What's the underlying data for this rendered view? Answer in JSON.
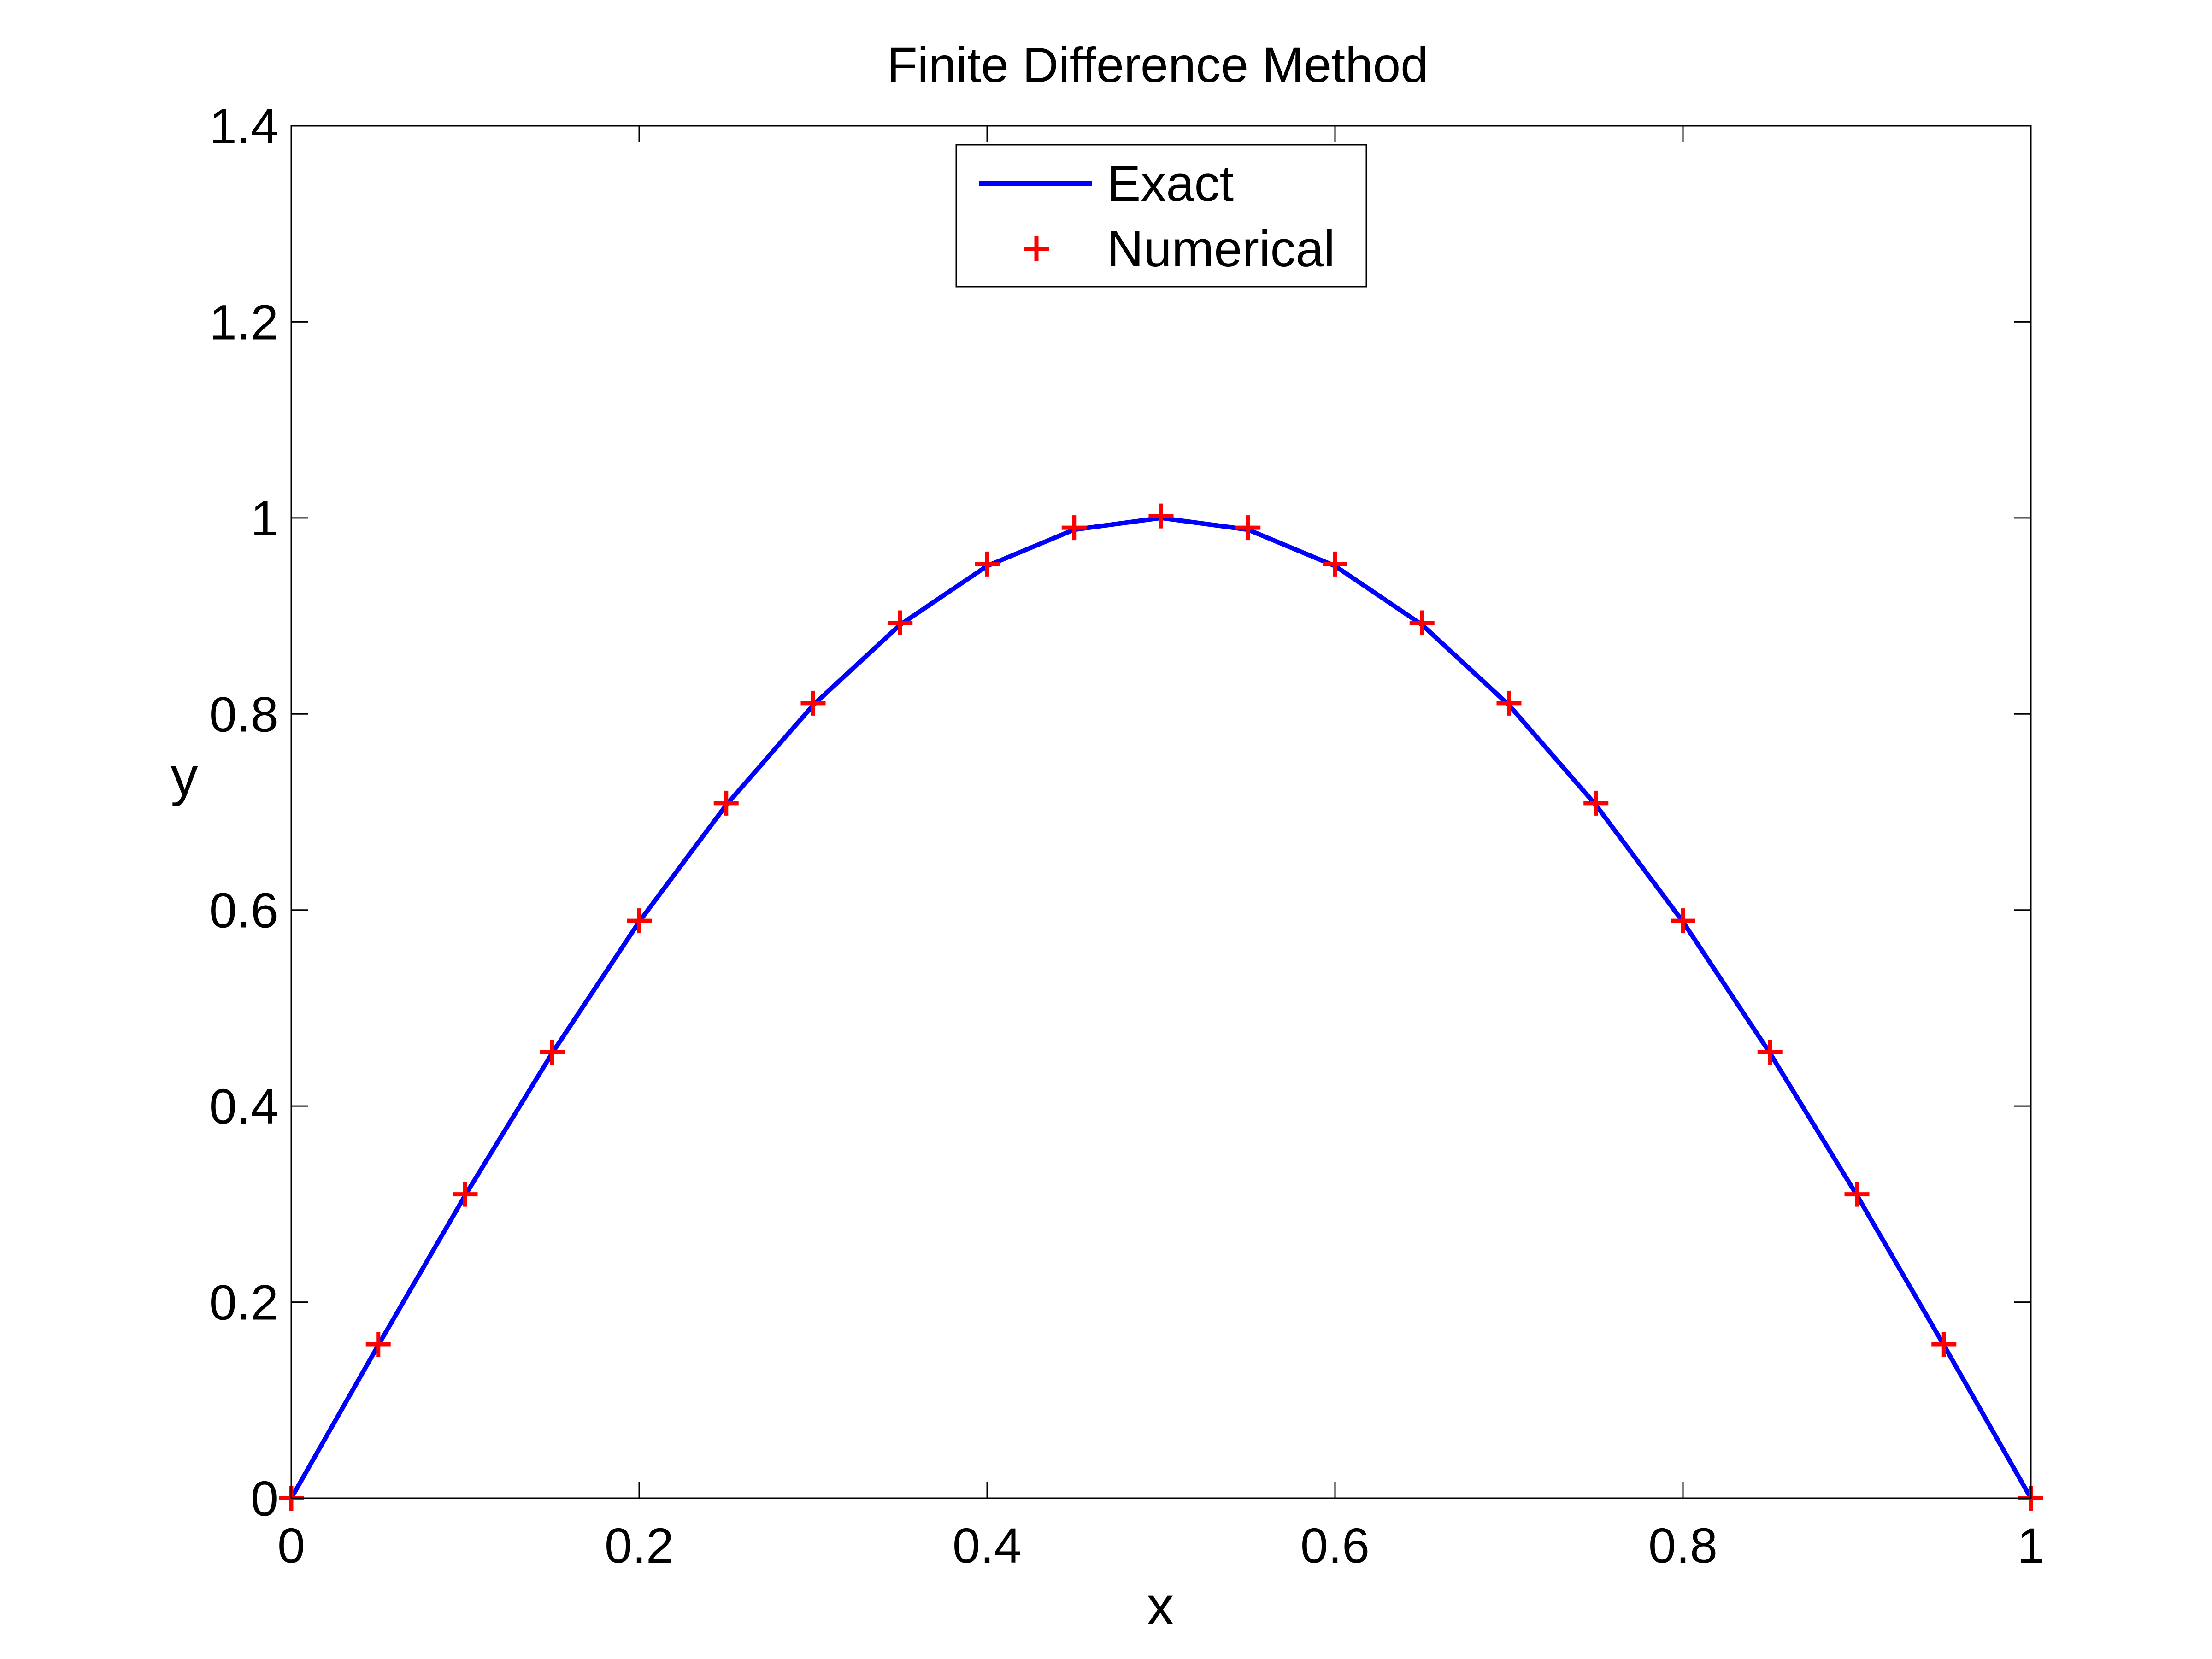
{
  "chart_data": {
    "type": "line",
    "title": "Finite Difference Method",
    "xlabel": "x",
    "ylabel": "y",
    "xlim": [
      0,
      1
    ],
    "ylim": [
      0,
      1.4
    ],
    "grid": false,
    "legend_position": "top-center",
    "x_ticks": [
      0,
      0.2,
      0.4,
      0.6,
      0.8,
      1
    ],
    "x_tick_labels": [
      "0",
      "0.2",
      "0.4",
      "0.6",
      "0.8",
      "1"
    ],
    "y_ticks": [
      0,
      0.2,
      0.4,
      0.6,
      0.8,
      1,
      1.2,
      1.4
    ],
    "y_tick_labels": [
      "0",
      "0.2",
      "0.4",
      "0.6",
      "0.8",
      "1",
      "1.2",
      "1.4"
    ],
    "x": [
      0,
      0.05,
      0.1,
      0.15,
      0.2,
      0.25,
      0.3,
      0.35,
      0.4,
      0.45,
      0.5,
      0.55,
      0.6,
      0.65,
      0.7,
      0.75,
      0.8,
      0.85,
      0.9,
      0.95,
      1
    ],
    "series": [
      {
        "name": "Exact",
        "style": "line",
        "color": "#0000ff",
        "values": [
          0,
          0.156,
          0.309,
          0.454,
          0.588,
          0.707,
          0.809,
          0.891,
          0.951,
          0.988,
          1.0,
          0.988,
          0.951,
          0.891,
          0.809,
          0.707,
          0.588,
          0.454,
          0.309,
          0.156,
          0
        ]
      },
      {
        "name": "Numerical",
        "style": "marker-plus",
        "color": "#ff0000",
        "values": [
          0,
          0.157,
          0.31,
          0.455,
          0.589,
          0.709,
          0.811,
          0.893,
          0.953,
          0.99,
          1.002,
          0.99,
          0.953,
          0.893,
          0.811,
          0.709,
          0.589,
          0.455,
          0.31,
          0.157,
          0
        ]
      }
    ]
  }
}
